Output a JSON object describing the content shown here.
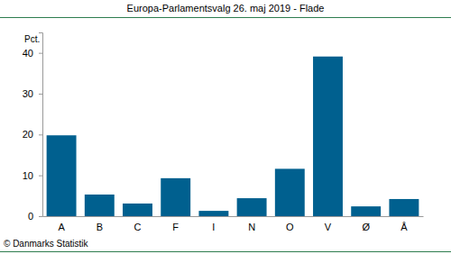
{
  "chart_data": {
    "type": "bar",
    "title": "Europa-Parlamentsvalg 26. maj 2019 - Flade",
    "y_label": "Pct.",
    "annotations": [
      "© Danmarks Statistik"
    ],
    "categories": [
      "A",
      "B",
      "C",
      "F",
      "I",
      "N",
      "O",
      "V",
      "Ø",
      "Å"
    ],
    "values": [
      19.8,
      5.3,
      3.1,
      9.3,
      1.3,
      4.4,
      11.6,
      39.1,
      2.4,
      4.2
    ],
    "color": "#00608f",
    "ylim": [
      0,
      45
    ],
    "yticks": [
      0,
      10,
      20,
      30,
      40
    ],
    "grid": false
  }
}
